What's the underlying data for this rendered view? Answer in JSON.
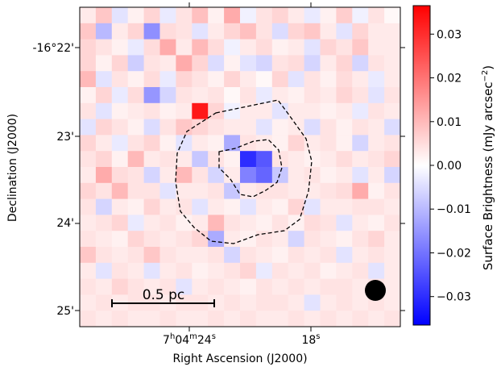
{
  "chart_data": {
    "type": "heatmap",
    "xlabel": "Right Ascension (J2000)",
    "ylabel": "Declination (J2000)",
    "x_ticks": [
      {
        "hms": "7h04m24s",
        "h": "7",
        "m": "04",
        "s": "24"
      },
      {
        "hms": "18s",
        "s": "18"
      }
    ],
    "y_ticks": [
      {
        "value": "-16°22'",
        "label": "-16°22'"
      },
      {
        "value": "23'",
        "label": "23'"
      },
      {
        "value": "24'",
        "label": "24'"
      },
      {
        "value": "25'",
        "label": "25'"
      }
    ],
    "colorbar": {
      "label": "Surface Brightness (mJy arcsec⁻²)",
      "label_main": "Surface Brightness (mJy arcsec",
      "label_exp": "−2",
      "label_end": ")",
      "range": [
        -0.0365,
        0.0365
      ],
      "ticks": [
        "0.03",
        "0.02",
        "0.01",
        "0.00",
        "−0.01",
        "−0.02",
        "−0.03"
      ],
      "tick_values": [
        0.03,
        0.02,
        0.01,
        0.0,
        -0.01,
        -0.02,
        -0.03
      ],
      "colormap": "bwr"
    },
    "grid_shape": [
      20,
      20
    ],
    "values": [
      [
        0.003,
        0.008,
        -0.004,
        0.002,
        0.006,
        -0.003,
        0.004,
        0.009,
        0.002,
        0.012,
        -0.002,
        0.004,
        0.006,
        0.003,
        -0.003,
        0.002,
        0.007,
        -0.002,
        0.004,
        0.001
      ],
      [
        0.008,
        -0.01,
        0.003,
        0.006,
        -0.016,
        0.005,
        0.004,
        -0.004,
        0.003,
        0.006,
        0.009,
        0.004,
        -0.005,
        0.006,
        0.008,
        0.003,
        -0.004,
        0.006,
        0.003,
        0.003
      ],
      [
        0.006,
        0.004,
        0.002,
        -0.003,
        0.005,
        0.012,
        0.003,
        0.01,
        0.005,
        -0.002,
        0.003,
        0.005,
        0.002,
        0.003,
        -0.004,
        0.006,
        0.004,
        0.008,
        0.003,
        0.003
      ],
      [
        0.006,
        0.002,
        0.006,
        -0.007,
        0.004,
        0.003,
        0.012,
        0.006,
        -0.005,
        0.002,
        -0.004,
        -0.006,
        0.004,
        0.005,
        -0.006,
        0.003,
        0.006,
        -0.006,
        0.004,
        0.003
      ],
      [
        0.01,
        -0.004,
        0.004,
        0.002,
        0.005,
        -0.003,
        0.006,
        0.004,
        0.002,
        0.006,
        0.003,
        0.001,
        0.006,
        -0.004,
        0.004,
        0.002,
        0.005,
        0.003,
        -0.003,
        0.003
      ],
      [
        0.002,
        0.006,
        -0.003,
        0.005,
        -0.015,
        -0.006,
        0.004,
        0.003,
        0.004,
        0.001,
        0.004,
        -0.003,
        0.003,
        0.002,
        0.004,
        0.003,
        0.006,
        0.004,
        -0.004,
        0.004
      ],
      [
        0.004,
        -0.004,
        0.002,
        0.003,
        0.004,
        0.002,
        0.003,
        0.033,
        0.006,
        -0.002,
        0.003,
        0.003,
        -0.004,
        0.003,
        0.003,
        0.002,
        0.003,
        -0.003,
        0.004,
        0.003
      ],
      [
        -0.004,
        0.006,
        0.004,
        0.002,
        -0.005,
        0.004,
        0.008,
        0.006,
        0.004,
        0.003,
        0.003,
        -0.004,
        0.002,
        0.003,
        -0.005,
        0.004,
        0.002,
        0.004,
        0.003,
        -0.005
      ],
      [
        0.006,
        0.003,
        -0.003,
        0.004,
        0.006,
        0.002,
        -0.004,
        0.003,
        0.002,
        -0.012,
        0.004,
        0.003,
        0.002,
        0.006,
        0.003,
        0.004,
        0.002,
        -0.006,
        0.003,
        0.004
      ],
      [
        0.004,
        0.006,
        0.002,
        0.01,
        0.003,
        0.004,
        0.003,
        -0.008,
        0.004,
        0.002,
        -0.03,
        -0.024,
        0.004,
        0.003,
        0.002,
        0.003,
        0.005,
        0.003,
        0.004,
        0.006
      ],
      [
        0.003,
        0.012,
        0.005,
        0.004,
        -0.006,
        0.003,
        0.01,
        0.004,
        -0.006,
        0.003,
        -0.018,
        -0.022,
        -0.008,
        0.003,
        0.004,
        0.002,
        0.003,
        -0.004,
        0.003,
        -0.006
      ],
      [
        0.006,
        0.004,
        0.01,
        0.004,
        0.004,
        -0.004,
        0.003,
        0.003,
        0.004,
        -0.008,
        0.003,
        0.004,
        0.004,
        0.003,
        0.003,
        0.004,
        0.005,
        0.012,
        0.002,
        0.004
      ],
      [
        0.004,
        -0.006,
        0.003,
        0.002,
        0.006,
        0.003,
        0.004,
        -0.004,
        0.003,
        0.002,
        -0.004,
        0.003,
        0.002,
        0.006,
        -0.004,
        0.003,
        0.003,
        0.004,
        0.004,
        0.003
      ],
      [
        0.003,
        0.004,
        0.006,
        -0.003,
        0.003,
        0.004,
        0.002,
        0.003,
        0.01,
        0.004,
        0.003,
        0.002,
        0.004,
        0.002,
        0.005,
        0.004,
        -0.004,
        0.003,
        0.002,
        0.004
      ],
      [
        0.004,
        0.003,
        0.002,
        0.006,
        0.004,
        0.003,
        0.004,
        0.006,
        -0.012,
        0.003,
        0.002,
        0.004,
        0.003,
        -0.006,
        0.004,
        0.003,
        0.002,
        0.004,
        0.006,
        0.003
      ],
      [
        0.008,
        0.004,
        0.003,
        0.004,
        0.008,
        0.004,
        0.003,
        0.003,
        0.004,
        -0.006,
        0.004,
        0.003,
        0.002,
        0.004,
        0.003,
        0.004,
        -0.004,
        0.003,
        0.004,
        0.003
      ],
      [
        0.003,
        -0.004,
        0.004,
        0.003,
        -0.004,
        0.003,
        0.004,
        0.002,
        0.003,
        0.004,
        0.006,
        -0.003,
        0.004,
        0.003,
        0.004,
        0.002,
        0.003,
        0.004,
        -0.004,
        0.003
      ],
      [
        0.004,
        0.003,
        0.006,
        0.004,
        0.003,
        0.004,
        -0.004,
        0.003,
        0.004,
        0.003,
        0.002,
        0.004,
        0.003,
        0.004,
        0.003,
        0.004,
        0.004,
        0.003,
        0.004,
        0.003
      ],
      [
        0.003,
        0.004,
        0.003,
        0.004,
        0.004,
        0.003,
        0.004,
        0.004,
        0.003,
        0.004,
        0.003,
        0.004,
        0.004,
        0.003,
        -0.004,
        0.003,
        0.004,
        0.003,
        0.004,
        0.003
      ],
      [
        0.004,
        0.003,
        0.004,
        0.003,
        0.003,
        0.004,
        0.003,
        0.003,
        0.004,
        0.003,
        0.004,
        0.003,
        0.003,
        0.004,
        0.003,
        0.004,
        0.003,
        0.004,
        0.003,
        0.004
      ]
    ],
    "contours": [
      {
        "style": "dashed",
        "level": "outer"
      },
      {
        "style": "dashed",
        "level": "inner"
      }
    ],
    "scalebar": {
      "label": "0.5 pc"
    },
    "beam": {
      "shape": "circle",
      "color": "#000000"
    },
    "grid": false
  }
}
